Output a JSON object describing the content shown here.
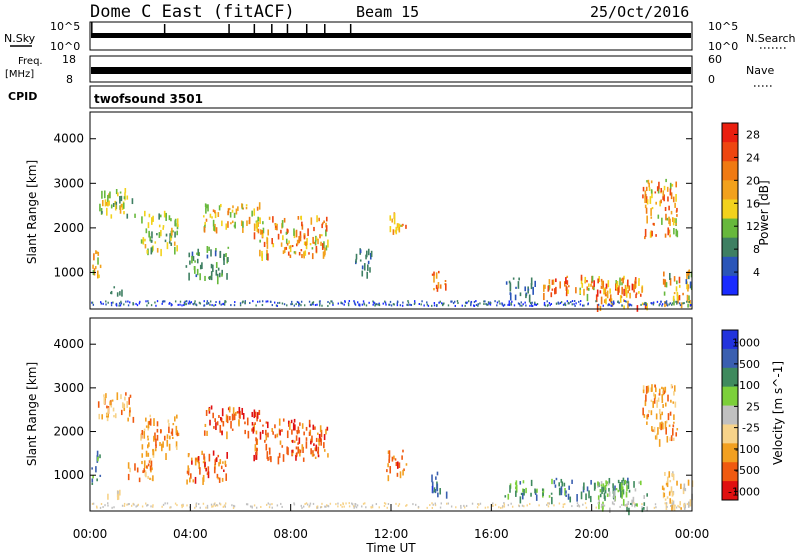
{
  "header": {
    "title": "Dome C East (fitACF)",
    "beam": "Beam 15",
    "date": "25/Oct/2016"
  },
  "top_panels": {
    "nsky_label": "N.Sky",
    "nsky_ticks": [
      "10^5",
      "10^0"
    ],
    "nsearch_label": "N.Search",
    "nsearch_ticks": [
      "10^5",
      "10^0"
    ],
    "freq_label": "Freq.",
    "freq_unit": "[MHz]",
    "freq_ticks": [
      "18",
      "8"
    ],
    "nave_label": "Nave",
    "nave_ticks": [
      "60",
      "0"
    ],
    "cpid_label": "CPID",
    "cpid_value": "twofsound 3501"
  },
  "colors": {
    "power": [
      "#1a2bff",
      "#2a55b8",
      "#3e7f62",
      "#67b83c",
      "#f2d21c",
      "#f2a11c",
      "#f07a12",
      "#ee4610",
      "#ea1f0f"
    ],
    "velocity": [
      "#e01010",
      "#f05a10",
      "#f2a020",
      "#f7d38a",
      "#c0c0c0",
      "#7ccf3a",
      "#3f8a5e",
      "#3a5fb0",
      "#2233dd"
    ]
  },
  "chart_data": [
    {
      "type": "heatmap",
      "title": "Power",
      "ylabel": "Slant Range [km]",
      "ylim": [
        180,
        4600
      ],
      "y_ticks": [
        "1000",
        "2000",
        "3000",
        "4000"
      ],
      "colorbar_label": "Power [dB]",
      "colorbar_ticks": [
        "4",
        "8",
        "12",
        "16",
        "20",
        "24",
        "28"
      ],
      "colorbar_range": [
        0,
        30
      ],
      "blobs": [
        {
          "t": [
            0.05,
            0.4
          ],
          "r": [
            800,
            1600
          ],
          "v": [
            8,
            22
          ]
        },
        {
          "t": [
            0.6,
            1.4
          ],
          "r": [
            540,
            700
          ],
          "v": [
            6,
            10
          ]
        },
        {
          "t": [
            0.3,
            1.8
          ],
          "r": [
            2300,
            2900
          ],
          "v": [
            8,
            18
          ]
        },
        {
          "t": [
            2.0,
            3.5
          ],
          "r": [
            1500,
            2400
          ],
          "v": [
            8,
            18
          ]
        },
        {
          "t": [
            3.8,
            5.5
          ],
          "r": [
            900,
            1600
          ],
          "v": [
            6,
            12
          ]
        },
        {
          "t": [
            4.5,
            6.8
          ],
          "r": [
            2000,
            2600
          ],
          "v": [
            10,
            22
          ]
        },
        {
          "t": [
            6.5,
            9.5
          ],
          "r": [
            1400,
            2300
          ],
          "v": [
            12,
            26
          ]
        },
        {
          "t": [
            10.5,
            11.2
          ],
          "r": [
            1000,
            1600
          ],
          "v": [
            4,
            10
          ]
        },
        {
          "t": [
            11.8,
            12.6
          ],
          "r": [
            1900,
            2400
          ],
          "v": [
            12,
            24
          ]
        },
        {
          "t": [
            13.6,
            14.2
          ],
          "r": [
            600,
            1100
          ],
          "v": [
            16,
            26
          ]
        },
        {
          "t": [
            16.5,
            17.8
          ],
          "r": [
            500,
            900
          ],
          "v": [
            4,
            10
          ]
        },
        {
          "t": [
            18.0,
            21.5
          ],
          "r": [
            500,
            950
          ],
          "v": [
            12,
            28
          ]
        },
        {
          "t": [
            20.2,
            22.2
          ],
          "r": [
            250,
            900
          ],
          "v": [
            14,
            28
          ]
        },
        {
          "t": [
            22.0,
            23.4
          ],
          "r": [
            1800,
            3100
          ],
          "v": [
            10,
            26
          ]
        },
        {
          "t": [
            22.8,
            24.0
          ],
          "r": [
            250,
            1100
          ],
          "v": [
            6,
            24
          ]
        }
      ]
    },
    {
      "type": "heatmap",
      "title": "Velocity",
      "ylabel": "Slant Range [km]",
      "xlabel": "Time UT",
      "ylim": [
        180,
        4600
      ],
      "y_ticks": [
        "1000",
        "2000",
        "3000",
        "4000"
      ],
      "x_ticks": [
        "00:00",
        "04:00",
        "08:00",
        "12:00",
        "16:00",
        "20:00",
        "00:00"
      ],
      "xlim": [
        0,
        24
      ],
      "colorbar_label": "Velocity [m s^-1]",
      "colorbar_ticks": [
        "1000",
        "500",
        "100",
        "25",
        "-25",
        "-100",
        "-500",
        "-1000"
      ],
      "blobs": [
        {
          "t": [
            0.05,
            0.4
          ],
          "r": [
            800,
            1600
          ],
          "v": 6
        },
        {
          "t": [
            0.6,
            1.4
          ],
          "r": [
            540,
            700
          ],
          "v": 3
        },
        {
          "t": [
            0.3,
            1.8
          ],
          "r": [
            2300,
            2900
          ],
          "v": 2
        },
        {
          "t": [
            1.5,
            2.5
          ],
          "r": [
            900,
            1500
          ],
          "v": 2
        },
        {
          "t": [
            2.0,
            3.5
          ],
          "r": [
            1500,
            2400
          ],
          "v": 2
        },
        {
          "t": [
            3.8,
            5.5
          ],
          "r": [
            900,
            1600
          ],
          "v": 1
        },
        {
          "t": [
            4.5,
            6.8
          ],
          "r": [
            2000,
            2600
          ],
          "v": 1
        },
        {
          "t": [
            6.5,
            9.5
          ],
          "r": [
            1400,
            2300
          ],
          "v": 1
        },
        {
          "t": [
            11.8,
            12.6
          ],
          "r": [
            1000,
            1600
          ],
          "v": 1
        },
        {
          "t": [
            13.6,
            14.2
          ],
          "r": [
            600,
            1100
          ],
          "v": 7
        },
        {
          "t": [
            16.5,
            17.8
          ],
          "r": [
            500,
            900
          ],
          "v": 6
        },
        {
          "t": [
            18.0,
            21.5
          ],
          "r": [
            500,
            950
          ],
          "v": 6
        },
        {
          "t": [
            20.2,
            22.2
          ],
          "r": [
            250,
            900
          ],
          "v": 5
        },
        {
          "t": [
            22.0,
            23.4
          ],
          "r": [
            1800,
            3100
          ],
          "v": 2
        },
        {
          "t": [
            22.8,
            24.0
          ],
          "r": [
            250,
            1100
          ],
          "v": 3
        }
      ]
    }
  ]
}
